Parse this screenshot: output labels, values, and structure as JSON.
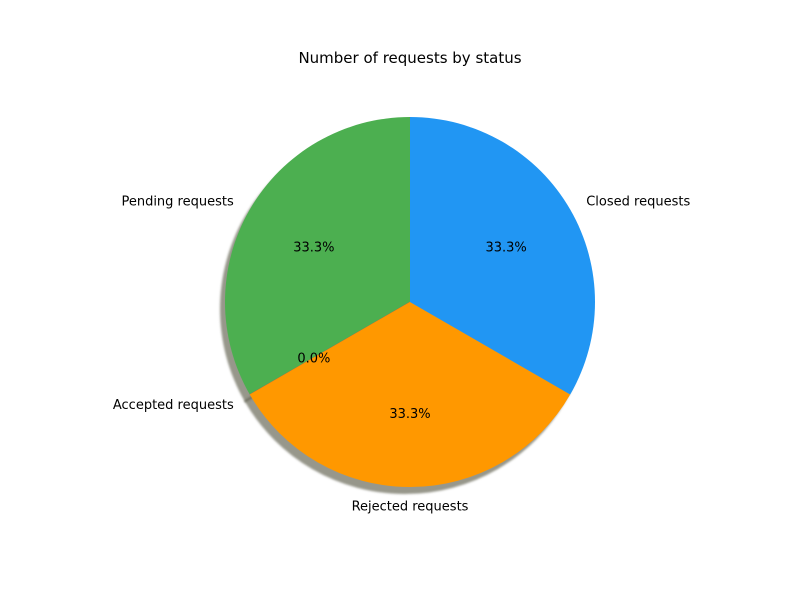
{
  "chart_data": {
    "type": "pie",
    "title": "Number of requests by status",
    "start_angle_deg": 90,
    "counterclockwise": true,
    "shadow": true,
    "slices": [
      {
        "label": "Pending requests",
        "value": 33.3,
        "pct_label": "33.3%",
        "color": "#4caf50"
      },
      {
        "label": "Accepted requests",
        "value": 0.0,
        "pct_label": "0.0%",
        "color": "#f44336"
      },
      {
        "label": "Rejected requests",
        "value": 33.3,
        "pct_label": "33.3%",
        "color": "#ff9800"
      },
      {
        "label": "Closed requests",
        "value": 33.3,
        "pct_label": "33.3%",
        "color": "#2196f3"
      }
    ]
  }
}
